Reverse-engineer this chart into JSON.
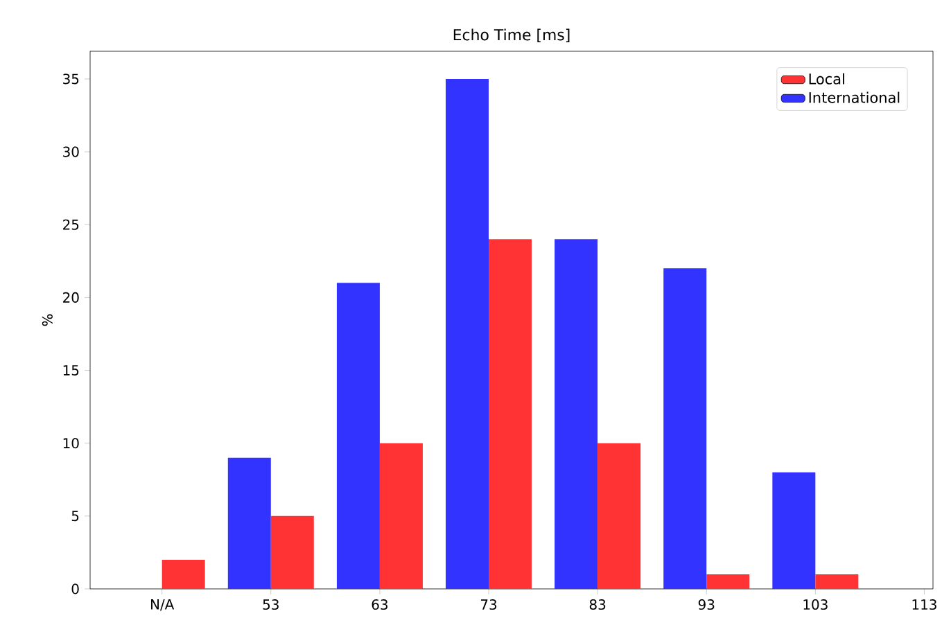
{
  "chart_data": {
    "type": "bar",
    "title": "Echo Time [ms]",
    "ylabel": "%",
    "categories": [
      "N/A",
      "53",
      "63",
      "73",
      "83",
      "93",
      "103",
      "113"
    ],
    "series": [
      {
        "name": "International",
        "color": "#3333ff",
        "values": [
          null,
          9,
          21,
          35,
          24,
          22,
          8,
          null
        ]
      },
      {
        "name": "Local",
        "color": "#ff3333",
        "values": [
          2,
          5,
          10,
          24,
          10,
          1,
          1,
          null
        ]
      }
    ],
    "ylim": [
      0,
      36.9
    ],
    "yticks": [
      0,
      5,
      10,
      15,
      20,
      25,
      30,
      35
    ],
    "legend": "top right"
  }
}
